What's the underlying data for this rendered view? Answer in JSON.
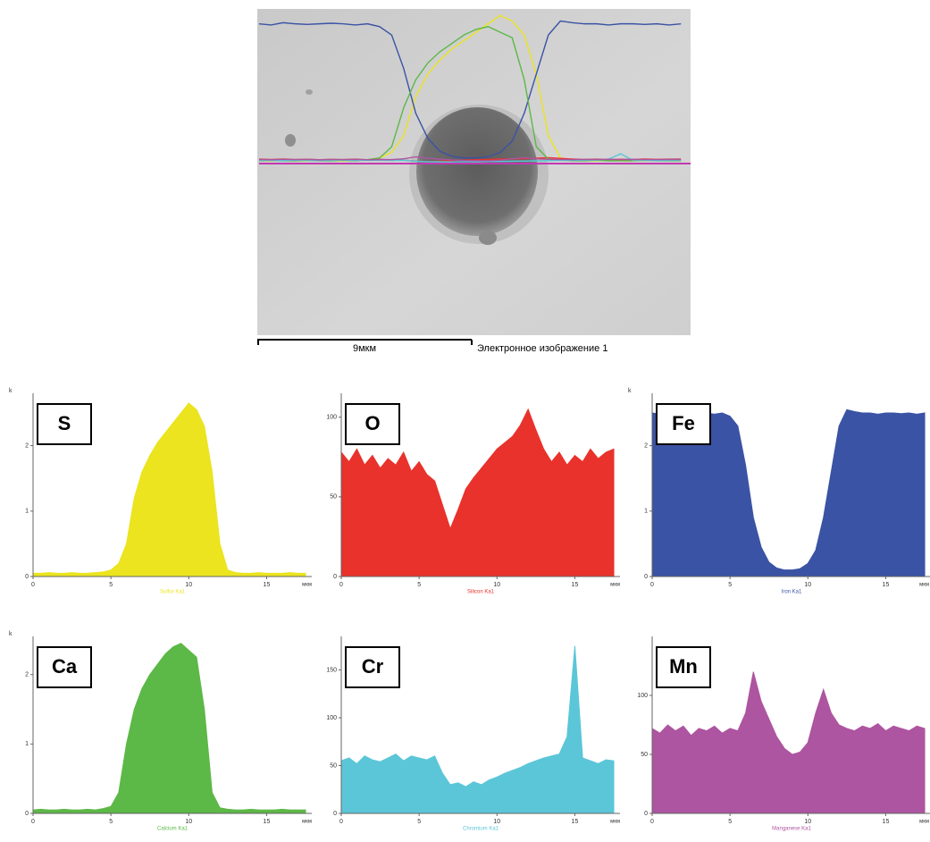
{
  "image": {
    "scale_bar": "9мкм",
    "caption": "Электронное изображение 1"
  },
  "chart_data": [
    {
      "type": "area",
      "title": "S",
      "x_label": "Sulfur Ka1",
      "x_unit": "мкм",
      "y_unit": "k",
      "color": "#ebe41e",
      "x": [
        0,
        0.5,
        1,
        1.5,
        2,
        2.5,
        3,
        3.5,
        4,
        4.5,
        5,
        5.5,
        6,
        6.5,
        7,
        7.5,
        8,
        8.5,
        9,
        9.5,
        10,
        10.5,
        11,
        11.5,
        12,
        12.5,
        13,
        13.5,
        14,
        14.5,
        15,
        15.5,
        16,
        16.5,
        17,
        17.5
      ],
      "values": [
        0.05,
        0.05,
        0.06,
        0.05,
        0.05,
        0.06,
        0.05,
        0.05,
        0.06,
        0.07,
        0.1,
        0.2,
        0.5,
        1.2,
        1.6,
        1.85,
        2.05,
        2.2,
        2.35,
        2.5,
        2.65,
        2.55,
        2.3,
        1.6,
        0.5,
        0.1,
        0.06,
        0.05,
        0.05,
        0.06,
        0.05,
        0.05,
        0.05,
        0.06,
        0.05,
        0.05
      ],
      "xlim": [
        0,
        17.9
      ],
      "ylim": [
        0,
        2.8
      ],
      "xticks": [
        0,
        5,
        10,
        15
      ],
      "yticks": [
        0,
        1,
        2
      ]
    },
    {
      "type": "area",
      "title": "O",
      "x_label": "Silicon Ka1",
      "x_unit": "мкм",
      "color": "#e8322b",
      "x": [
        0,
        0.5,
        1,
        1.5,
        2,
        2.5,
        3,
        3.5,
        4,
        4.5,
        5,
        5.5,
        6,
        6.5,
        7,
        7.5,
        8,
        8.5,
        9,
        9.5,
        10,
        10.5,
        11,
        11.5,
        12,
        12.5,
        13,
        13.5,
        14,
        14.5,
        15,
        15.5,
        16,
        16.5,
        17,
        17.5
      ],
      "values": [
        78,
        72,
        80,
        70,
        76,
        68,
        74,
        70,
        78,
        66,
        72,
        64,
        60,
        45,
        30,
        42,
        55,
        62,
        68,
        74,
        80,
        84,
        88,
        95,
        105,
        92,
        80,
        72,
        78,
        70,
        76,
        72,
        80,
        74,
        78,
        80
      ],
      "xlim": [
        0,
        17.9
      ],
      "ylim": [
        0,
        115
      ],
      "xticks": [
        0,
        5,
        10,
        15
      ],
      "yticks": [
        0,
        50,
        100
      ]
    },
    {
      "type": "area",
      "title": "Fe",
      "x_label": "Iron Ka1",
      "x_unit": "мкм",
      "y_unit": "k",
      "color": "#3a53a4",
      "x": [
        0,
        0.5,
        1,
        1.5,
        2,
        2.5,
        3,
        3.5,
        4,
        4.5,
        5,
        5.5,
        6,
        6.5,
        7,
        7.5,
        8,
        8.5,
        9,
        9.5,
        10,
        10.5,
        11,
        11.5,
        12,
        12.5,
        13,
        13.5,
        14,
        14.5,
        15,
        15.5,
        16,
        16.5,
        17,
        17.5
      ],
      "values": [
        2.5,
        2.48,
        2.52,
        2.5,
        2.49,
        2.5,
        2.51,
        2.5,
        2.48,
        2.5,
        2.45,
        2.3,
        1.7,
        0.9,
        0.45,
        0.22,
        0.13,
        0.1,
        0.1,
        0.12,
        0.2,
        0.4,
        0.9,
        1.6,
        2.3,
        2.55,
        2.52,
        2.5,
        2.5,
        2.48,
        2.5,
        2.5,
        2.49,
        2.5,
        2.48,
        2.5
      ],
      "xlim": [
        0,
        17.9
      ],
      "ylim": [
        0,
        2.8
      ],
      "xticks": [
        0,
        5,
        10,
        15
      ],
      "yticks": [
        0,
        1,
        2
      ]
    },
    {
      "type": "area",
      "title": "Ca",
      "x_label": "Calcium Ka1",
      "x_unit": "мкм",
      "y_unit": "k",
      "color": "#5cb847",
      "x": [
        0,
        0.5,
        1,
        1.5,
        2,
        2.5,
        3,
        3.5,
        4,
        4.5,
        5,
        5.5,
        6,
        6.5,
        7,
        7.5,
        8,
        8.5,
        9,
        9.5,
        10,
        10.5,
        11,
        11.5,
        12,
        12.5,
        13,
        13.5,
        14,
        14.5,
        15,
        15.5,
        16,
        16.5,
        17,
        17.5
      ],
      "values": [
        0.05,
        0.06,
        0.05,
        0.05,
        0.06,
        0.05,
        0.05,
        0.06,
        0.05,
        0.07,
        0.1,
        0.3,
        1.0,
        1.5,
        1.8,
        2.0,
        2.15,
        2.3,
        2.4,
        2.45,
        2.35,
        2.25,
        1.5,
        0.3,
        0.08,
        0.06,
        0.05,
        0.05,
        0.06,
        0.05,
        0.05,
        0.05,
        0.06,
        0.05,
        0.05,
        0.05
      ],
      "xlim": [
        0,
        17.9
      ],
      "ylim": [
        0,
        2.55
      ],
      "xticks": [
        0,
        5,
        10,
        15
      ],
      "yticks": [
        0,
        1,
        2
      ]
    },
    {
      "type": "area",
      "title": "Cr",
      "x_label": "Chromium Ka1",
      "x_unit": "мкм",
      "color": "#5bc6d8",
      "x": [
        0,
        0.5,
        1,
        1.5,
        2,
        2.5,
        3,
        3.5,
        4,
        4.5,
        5,
        5.5,
        6,
        6.5,
        7,
        7.5,
        8,
        8.5,
        9,
        9.5,
        10,
        10.5,
        11,
        11.5,
        12,
        12.5,
        13,
        13.5,
        14,
        14.5,
        15,
        15.5,
        16,
        16.5,
        17,
        17.5
      ],
      "values": [
        55,
        58,
        52,
        60,
        56,
        54,
        58,
        62,
        55,
        60,
        58,
        56,
        60,
        42,
        30,
        32,
        28,
        33,
        30,
        35,
        38,
        42,
        45,
        48,
        52,
        55,
        58,
        60,
        62,
        80,
        175,
        58,
        55,
        52,
        56,
        55
      ],
      "xlim": [
        0,
        17.9
      ],
      "ylim": [
        0,
        185
      ],
      "xticks": [
        0,
        5,
        10,
        15
      ],
      "yticks": [
        0,
        50,
        100,
        150
      ]
    },
    {
      "type": "area",
      "title": "Mn",
      "x_label": "Manganese Ka1",
      "x_unit": "мкм",
      "color": "#ad55a0",
      "x": [
        0,
        0.5,
        1,
        1.5,
        2,
        2.5,
        3,
        3.5,
        4,
        4.5,
        5,
        5.5,
        6,
        6.5,
        7,
        7.5,
        8,
        8.5,
        9,
        9.5,
        10,
        10.5,
        11,
        11.5,
        12,
        12.5,
        13,
        13.5,
        14,
        14.5,
        15,
        15.5,
        16,
        16.5,
        17,
        17.5
      ],
      "values": [
        72,
        68,
        75,
        70,
        74,
        66,
        72,
        70,
        74,
        68,
        72,
        70,
        85,
        120,
        95,
        80,
        65,
        55,
        50,
        52,
        60,
        85,
        105,
        85,
        75,
        72,
        70,
        74,
        72,
        76,
        70,
        74,
        72,
        70,
        74,
        72
      ],
      "xlim": [
        0,
        17.9
      ],
      "ylim": [
        0,
        150
      ],
      "xticks": [
        0,
        5,
        10,
        15
      ],
      "yticks": [
        0,
        50,
        100
      ]
    }
  ]
}
